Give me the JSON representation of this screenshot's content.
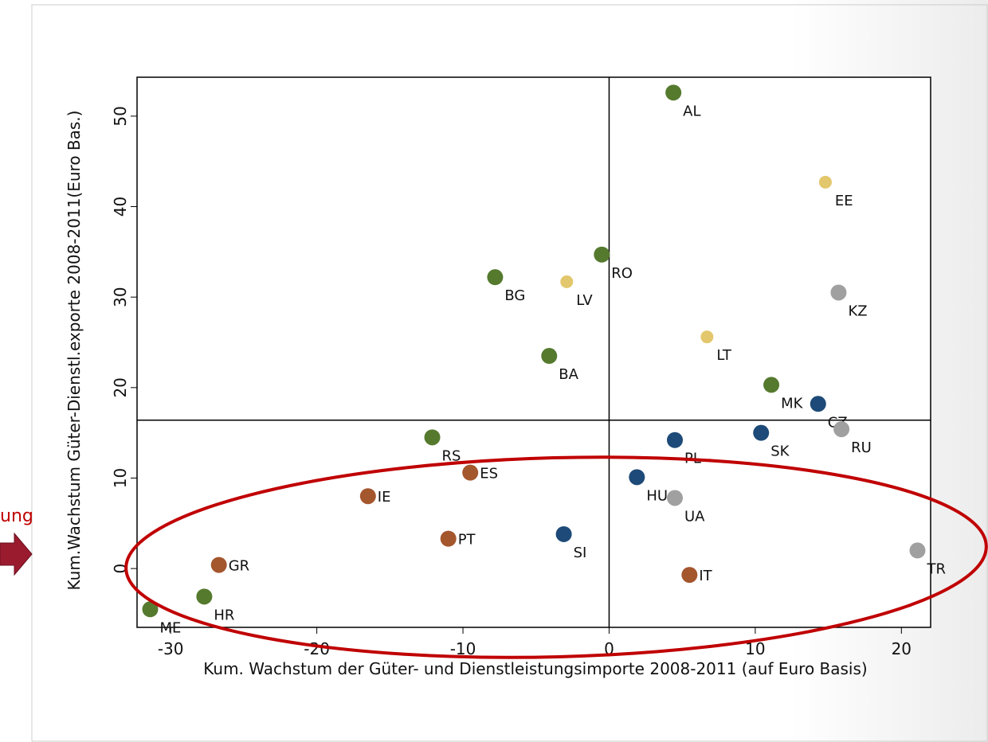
{
  "chart_data": {
    "type": "scatter",
    "x_label": "Kum. Wachstum der Güter- und Dienstleistungsimporte 2008-2011 (auf Euro Basis)",
    "y_label": "Kum.Wachstum Güter-Dienstl.exporte 2008-2011(Euro Bas.)",
    "annotation": "ung",
    "xlim": [
      -32.3,
      22
    ],
    "ylim": [
      -6.5,
      54.3
    ],
    "xticks": [
      -30,
      -20,
      -10,
      0,
      10,
      20
    ],
    "yticks": [
      0,
      10,
      20,
      30,
      40,
      50
    ],
    "reference_lines": {
      "x": 0,
      "y": 16.4
    },
    "points": [
      {
        "label": "AL",
        "x": 4.4,
        "y": 52.6,
        "color": "#557a2e"
      },
      {
        "label": "EE",
        "x": 14.8,
        "y": 42.7,
        "color": "#e3c76c"
      },
      {
        "label": "RO",
        "x": -0.5,
        "y": 34.7,
        "color": "#557a2e"
      },
      {
        "label": "BG",
        "x": -7.8,
        "y": 32.2,
        "color": "#557a2e"
      },
      {
        "label": "LV",
        "x": -2.9,
        "y": 31.7,
        "color": "#e3c76c"
      },
      {
        "label": "KZ",
        "x": 15.7,
        "y": 30.5,
        "color": "#a0a0a0"
      },
      {
        "label": "LT",
        "x": 6.7,
        "y": 25.6,
        "color": "#e3c76c"
      },
      {
        "label": "BA",
        "x": -4.1,
        "y": 23.5,
        "color": "#557a2e"
      },
      {
        "label": "MK",
        "x": 11.1,
        "y": 20.3,
        "color": "#557a2e"
      },
      {
        "label": "CZ",
        "x": 14.3,
        "y": 18.2,
        "color": "#1d4a78"
      },
      {
        "label": "RU",
        "x": 15.9,
        "y": 15.4,
        "color": "#a0a0a0"
      },
      {
        "label": "SK",
        "x": 10.4,
        "y": 15.0,
        "color": "#1d4a78"
      },
      {
        "label": "PL",
        "x": 4.5,
        "y": 14.2,
        "color": "#1d4a78"
      },
      {
        "label": "RS",
        "x": -12.1,
        "y": 14.5,
        "color": "#557a2e"
      },
      {
        "label": "ES",
        "x": -9.5,
        "y": 10.6,
        "color": "#a4562d"
      },
      {
        "label": "HU",
        "x": 1.9,
        "y": 10.1,
        "color": "#1d4a78"
      },
      {
        "label": "UA",
        "x": 4.5,
        "y": 7.8,
        "color": "#a0a0a0"
      },
      {
        "label": "IE",
        "x": -16.5,
        "y": 8.0,
        "color": "#a4562d"
      },
      {
        "label": "PT",
        "x": -11.0,
        "y": 3.3,
        "color": "#a4562d"
      },
      {
        "label": "SI",
        "x": -3.1,
        "y": 3.8,
        "color": "#1d4a78"
      },
      {
        "label": "TR",
        "x": 21.1,
        "y": 2.0,
        "color": "#a0a0a0"
      },
      {
        "label": "GR",
        "x": -26.7,
        "y": 0.4,
        "color": "#a4562d"
      },
      {
        "label": "IT",
        "x": 5.5,
        "y": -0.7,
        "color": "#a4562d"
      },
      {
        "label": "HR",
        "x": -27.7,
        "y": -3.1,
        "color": "#557a2e"
      },
      {
        "label": "ME",
        "x": -31.4,
        "y": -4.5,
        "color": "#557a2e"
      }
    ]
  }
}
